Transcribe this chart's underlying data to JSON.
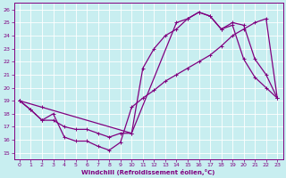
{
  "xlabel": "Windchill (Refroidissement éolien,°C)",
  "bg_color": "#c8eef0",
  "line_color": "#800080",
  "grid_color": "#ffffff",
  "xlim": [
    -0.5,
    23.5
  ],
  "ylim": [
    14.5,
    26.5
  ],
  "xticks": [
    0,
    1,
    2,
    3,
    4,
    5,
    6,
    7,
    8,
    9,
    10,
    11,
    12,
    13,
    14,
    15,
    16,
    17,
    18,
    19,
    20,
    21,
    22,
    23
  ],
  "yticks": [
    15,
    16,
    17,
    18,
    19,
    20,
    21,
    22,
    23,
    24,
    25,
    26
  ],
  "line1_x": [
    0,
    1,
    2,
    3,
    4,
    5,
    6,
    7,
    8,
    9,
    10,
    11,
    12,
    13,
    14,
    15,
    16,
    17,
    18,
    19,
    20,
    21,
    22,
    23
  ],
  "line1_y": [
    19.0,
    18.3,
    17.5,
    18.0,
    16.2,
    15.9,
    15.9,
    15.5,
    15.2,
    15.8,
    18.5,
    19.2,
    19.8,
    20.5,
    21.0,
    21.5,
    22.0,
    22.5,
    23.2,
    24.0,
    24.5,
    25.0,
    25.3,
    19.2
  ],
  "line2_x": [
    0,
    1,
    2,
    3,
    4,
    5,
    6,
    7,
    8,
    9,
    10,
    11,
    12,
    13,
    14,
    15,
    16,
    17,
    18,
    19,
    20,
    21,
    22,
    23
  ],
  "line2_y": [
    19.0,
    18.3,
    17.5,
    17.5,
    17.0,
    16.8,
    16.8,
    16.5,
    16.2,
    16.5,
    16.5,
    21.5,
    23.0,
    24.0,
    24.5,
    25.3,
    25.8,
    25.5,
    24.5,
    24.8,
    22.2,
    20.8,
    20.0,
    19.2
  ],
  "line3_x": [
    0,
    2,
    10,
    14,
    15,
    16,
    17,
    18,
    19,
    20,
    21,
    22,
    23
  ],
  "line3_y": [
    19.0,
    18.5,
    16.5,
    25.0,
    25.3,
    25.8,
    25.5,
    24.5,
    25.0,
    24.8,
    22.2,
    21.0,
    19.2
  ]
}
